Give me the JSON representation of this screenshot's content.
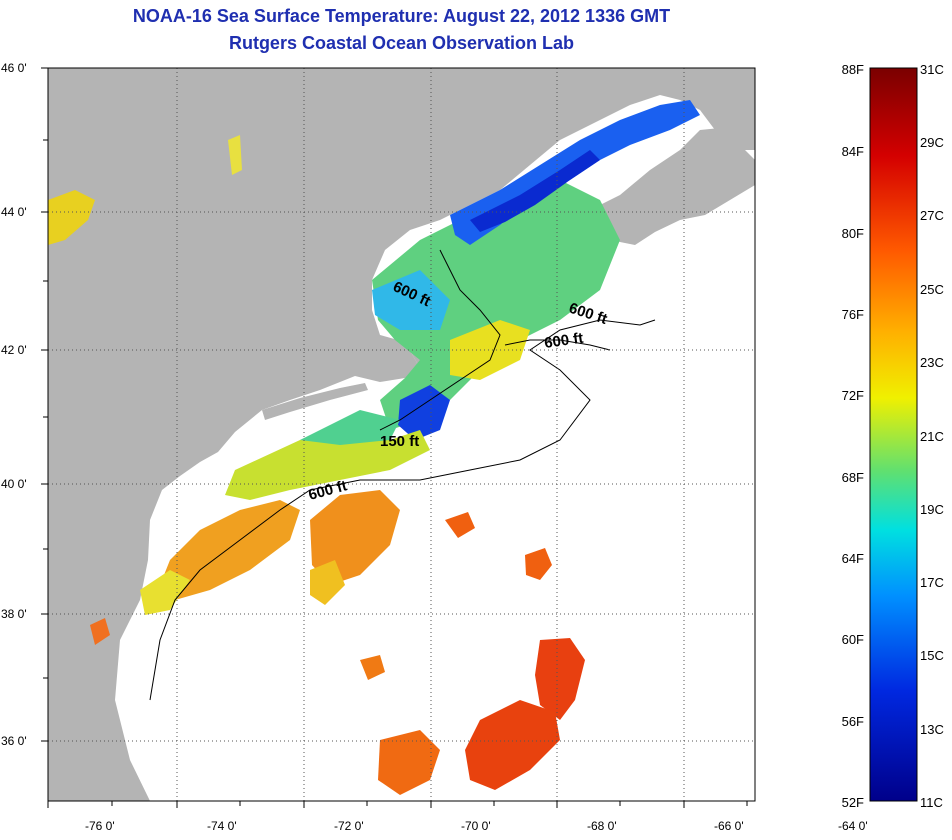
{
  "title": {
    "line1": "NOAA-16 Sea Surface Temperature:  August 22, 2012 1336 GMT",
    "line2": "Rutgers Coastal Ocean Observation Lab"
  },
  "map": {
    "lon_labels": [
      "-76 0'",
      "-74 0'",
      "-72 0'",
      "-70 0'",
      "-68 0'",
      "-66 0'",
      "-64 0'"
    ],
    "lat_labels": [
      "46 0'",
      "44 0'",
      "42 0'",
      "40 0'",
      "38 0'",
      "36 0'"
    ],
    "contour_labels": [
      "600 ft",
      "600 ft",
      "600 ft",
      "150 ft",
      "600 ft"
    ],
    "colors": {
      "land": "#b4b4b4",
      "ocean_nodata": "#ffffff",
      "title": "#1f2fb0"
    }
  },
  "colorbar": {
    "fahrenheit": [
      "88F",
      "84F",
      "80F",
      "76F",
      "72F",
      "68F",
      "64F",
      "60F",
      "56F",
      "52F"
    ],
    "celsius": [
      "31C",
      "29C",
      "27C",
      "25C",
      "23C",
      "21C",
      "19C",
      "17C",
      "15C",
      "13C",
      "11C"
    ]
  }
}
